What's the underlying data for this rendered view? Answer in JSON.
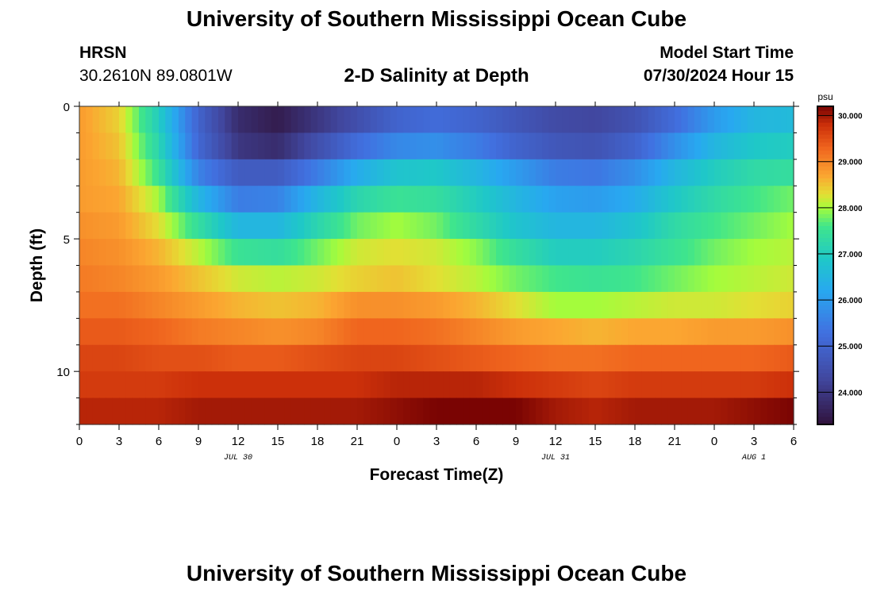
{
  "header": {
    "title": "University of Southern Mississippi Ocean Cube",
    "station": "HRSN",
    "coords": "30.2610N  89.0801W",
    "subtitle": "2-D Salinity at Depth",
    "model_label": "Model Start Time",
    "model_time": "07/30/2024 Hour 15"
  },
  "footer": {
    "title": "University of Southern Mississippi Ocean Cube"
  },
  "chart_data": {
    "type": "heatmap",
    "title": "2-D Salinity at Depth",
    "xlabel": "Forecast Time(Z)",
    "ylabel": "Depth (ft)",
    "x_tick_labels": [
      "0",
      "3",
      "6",
      "9",
      "12",
      "15",
      "18",
      "21",
      "0",
      "3",
      "6",
      "9",
      "12",
      "15",
      "18",
      "21",
      "0",
      "3",
      "6"
    ],
    "x_range_hours": [
      0,
      54
    ],
    "date_labels": [
      {
        "label": "JUL 30",
        "hour": 12
      },
      {
        "label": "JUL 31",
        "hour": 36
      },
      {
        "label": "AUG 1",
        "hour": 51
      }
    ],
    "y_ticks": [
      0,
      5,
      10
    ],
    "ylim": [
      12,
      0
    ],
    "depth_levels_ft": [
      0.5,
      1.5,
      2.5,
      3.5,
      4.5,
      5.5,
      6.5,
      7.5,
      8.5,
      9.5,
      10.5,
      11.5
    ],
    "time_points_hours": [
      0,
      3,
      6,
      9,
      12,
      15,
      18,
      21,
      24,
      27,
      30,
      33,
      36,
      39,
      42,
      45,
      48,
      51,
      54
    ],
    "salinity_psu": [
      [
        28.8,
        28.4,
        27.0,
        25.0,
        23.8,
        23.5,
        24.0,
        24.5,
        25.0,
        25.2,
        25.0,
        24.7,
        24.4,
        24.3,
        24.6,
        25.2,
        26.0,
        26.5,
        26.6
      ],
      [
        28.8,
        28.5,
        27.2,
        25.1,
        24.0,
        23.8,
        24.5,
        25.2,
        25.7,
        25.8,
        25.5,
        25.0,
        24.7,
        24.6,
        25.0,
        25.8,
        26.5,
        26.9,
        27.0
      ],
      [
        28.8,
        28.6,
        27.5,
        25.6,
        24.8,
        24.8,
        25.5,
        26.3,
        26.8,
        26.9,
        26.5,
        26.0,
        25.5,
        25.4,
        25.8,
        26.5,
        27.0,
        27.3,
        27.4
      ],
      [
        28.8,
        28.7,
        28.0,
        26.5,
        25.5,
        25.6,
        26.5,
        27.2,
        27.5,
        27.4,
        27.0,
        26.5,
        26.1,
        26.0,
        26.3,
        26.9,
        27.3,
        27.6,
        27.8
      ],
      [
        28.9,
        28.8,
        28.3,
        27.4,
        26.5,
        26.5,
        27.2,
        27.8,
        28.0,
        27.8,
        27.3,
        26.8,
        26.5,
        26.5,
        26.8,
        27.3,
        27.6,
        27.8,
        28.0
      ],
      [
        29.0,
        28.9,
        28.6,
        28.1,
        27.5,
        27.4,
        27.8,
        28.2,
        28.3,
        28.2,
        27.9,
        27.4,
        27.0,
        27.0,
        27.2,
        27.5,
        27.8,
        28.0,
        28.1
      ],
      [
        29.1,
        29.0,
        28.8,
        28.5,
        28.2,
        28.1,
        28.2,
        28.4,
        28.5,
        28.3,
        28.1,
        27.8,
        27.6,
        27.5,
        27.6,
        27.8,
        28.0,
        28.1,
        28.2
      ],
      [
        29.2,
        29.2,
        29.0,
        28.8,
        28.6,
        28.5,
        28.6,
        28.9,
        28.9,
        28.8,
        28.6,
        28.3,
        28.0,
        28.0,
        28.1,
        28.2,
        28.2,
        28.3,
        28.4
      ],
      [
        29.4,
        29.4,
        29.3,
        29.1,
        29.0,
        28.9,
        29.0,
        29.3,
        29.3,
        29.2,
        29.0,
        28.8,
        28.7,
        28.6,
        28.7,
        28.7,
        28.8,
        28.8,
        28.9
      ],
      [
        29.6,
        29.6,
        29.5,
        29.5,
        29.4,
        29.4,
        29.5,
        29.6,
        29.6,
        29.5,
        29.4,
        29.3,
        29.2,
        29.2,
        29.3,
        29.3,
        29.3,
        29.3,
        29.4
      ],
      [
        29.7,
        29.7,
        29.7,
        29.8,
        29.8,
        29.8,
        29.8,
        29.8,
        29.9,
        29.9,
        29.9,
        29.8,
        29.7,
        29.6,
        29.7,
        29.7,
        29.7,
        29.7,
        29.8
      ],
      [
        29.9,
        29.9,
        29.9,
        30.0,
        30.0,
        30.0,
        30.0,
        30.0,
        30.1,
        30.2,
        30.3,
        30.2,
        30.0,
        29.9,
        30.0,
        30.0,
        30.0,
        30.1,
        30.2
      ]
    ],
    "colorbar": {
      "unit": "psu",
      "ticks": [
        "24.000",
        "25.000",
        "26.000",
        "27.000",
        "28.000",
        "29.000",
        "30.000"
      ],
      "range": [
        23.3,
        30.2
      ],
      "stops": [
        [
          23.3,
          "#30123b"
        ],
        [
          24.3,
          "#41479f"
        ],
        [
          25.3,
          "#4170e0"
        ],
        [
          26.2,
          "#28a8f0"
        ],
        [
          26.9,
          "#1fc8c8"
        ],
        [
          27.6,
          "#3fe58c"
        ],
        [
          28.0,
          "#a4fc3c"
        ],
        [
          28.3,
          "#e3df34"
        ],
        [
          28.7,
          "#fba631"
        ],
        [
          29.3,
          "#f0651e"
        ],
        [
          29.8,
          "#cc300a"
        ],
        [
          30.2,
          "#7a0403"
        ]
      ]
    }
  }
}
